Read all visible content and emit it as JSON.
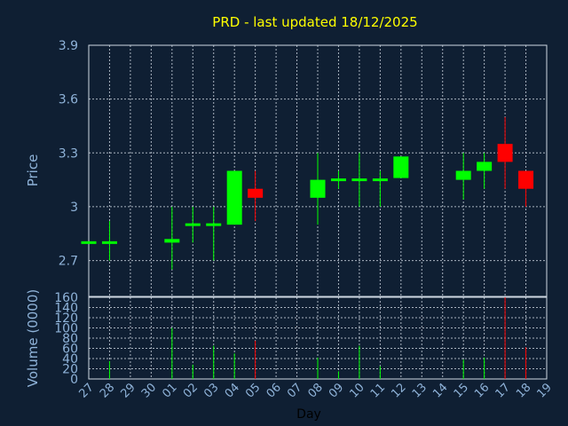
{
  "chart_data": [
    {
      "type": "candlestick",
      "title": "PRD - last updated 18/12/2025",
      "ylabel": "Price",
      "xlabel": "Day",
      "ylim": [
        2.5,
        3.9
      ],
      "yticks": [
        "3.9",
        "3.6",
        "3.3",
        "3",
        "2.7"
      ],
      "ytick_values": [
        3.9,
        3.6,
        3.3,
        3.0,
        2.7
      ],
      "grid": true,
      "x": [
        "27",
        "28",
        "29",
        "30",
        "01",
        "02",
        "03",
        "04",
        "05",
        "06",
        "07",
        "08",
        "09",
        "10",
        "11",
        "12",
        "13",
        "14",
        "15",
        "16",
        "17",
        "18",
        "19"
      ],
      "up_color": "#00ff00",
      "down_color": "#ff0000",
      "candles": [
        {
          "day": "27",
          "open": 2.8,
          "high": 2.8,
          "low": 2.8,
          "close": 2.8
        },
        {
          "day": "28",
          "open": 2.8,
          "high": 2.92,
          "low": 2.7,
          "close": 2.8
        },
        {
          "day": "01",
          "open": 2.8,
          "high": 3.0,
          "low": 2.65,
          "close": 2.82
        },
        {
          "day": "02",
          "open": 2.9,
          "high": 3.0,
          "low": 2.8,
          "close": 2.9
        },
        {
          "day": "03",
          "open": 2.9,
          "high": 3.0,
          "low": 2.7,
          "close": 2.9
        },
        {
          "day": "04",
          "open": 2.9,
          "high": 3.2,
          "low": 2.9,
          "close": 3.2
        },
        {
          "day": "05",
          "open": 3.1,
          "high": 3.2,
          "low": 2.92,
          "close": 3.05
        },
        {
          "day": "08",
          "open": 3.05,
          "high": 3.3,
          "low": 2.9,
          "close": 3.15
        },
        {
          "day": "09",
          "open": 3.15,
          "high": 3.2,
          "low": 3.1,
          "close": 3.15
        },
        {
          "day": "10",
          "open": 3.15,
          "high": 3.3,
          "low": 3.0,
          "close": 3.15
        },
        {
          "day": "11",
          "open": 3.15,
          "high": 3.2,
          "low": 3.0,
          "close": 3.15
        },
        {
          "day": "12",
          "open": 3.16,
          "high": 3.28,
          "low": 3.16,
          "close": 3.28
        },
        {
          "day": "15",
          "open": 3.15,
          "high": 3.3,
          "low": 3.04,
          "close": 3.2
        },
        {
          "day": "16",
          "open": 3.2,
          "high": 3.3,
          "low": 3.1,
          "close": 3.25
        },
        {
          "day": "17",
          "open": 3.35,
          "high": 3.5,
          "low": 3.1,
          "close": 3.25
        },
        {
          "day": "18",
          "open": 3.2,
          "high": 3.2,
          "low": 3.0,
          "close": 3.1
        }
      ]
    },
    {
      "type": "bar",
      "ylabel": "Volume (0000)",
      "xlabel": "Day",
      "ylim": [
        0,
        160
      ],
      "yticks": [
        "160",
        "140",
        "120",
        "100",
        "80",
        "60",
        "40",
        "20",
        "0"
      ],
      "ytick_values": [
        160,
        140,
        120,
        100,
        80,
        60,
        40,
        20,
        0
      ],
      "grid": true,
      "bars": [
        {
          "day": "28",
          "value": 35,
          "direction": "up"
        },
        {
          "day": "01",
          "value": 100,
          "direction": "up"
        },
        {
          "day": "02",
          "value": 28,
          "direction": "up"
        },
        {
          "day": "03",
          "value": 65,
          "direction": "up"
        },
        {
          "day": "04",
          "value": 50,
          "direction": "up"
        },
        {
          "day": "05",
          "value": 75,
          "direction": "down"
        },
        {
          "day": "08",
          "value": 42,
          "direction": "up"
        },
        {
          "day": "09",
          "value": 15,
          "direction": "up"
        },
        {
          "day": "10",
          "value": 65,
          "direction": "up"
        },
        {
          "day": "11",
          "value": 25,
          "direction": "up"
        },
        {
          "day": "15",
          "value": 38,
          "direction": "up"
        },
        {
          "day": "16",
          "value": 42,
          "direction": "up"
        },
        {
          "day": "17",
          "value": 160,
          "direction": "down"
        },
        {
          "day": "18",
          "value": 62,
          "direction": "down"
        }
      ]
    }
  ]
}
